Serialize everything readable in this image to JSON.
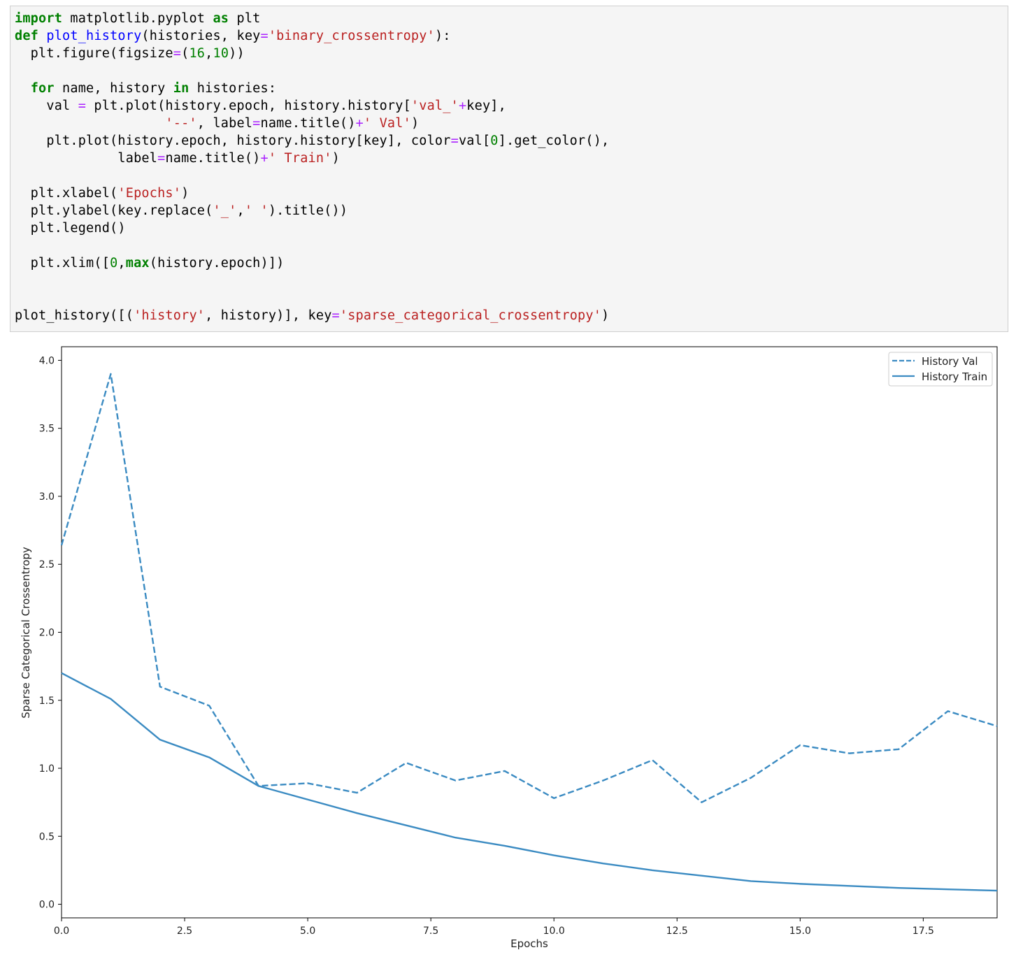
{
  "code": {
    "lines": [
      [
        {
          "t": "import",
          "c": "kw"
        },
        {
          "t": " matplotlib.pyplot "
        },
        {
          "t": "as",
          "c": "kw"
        },
        {
          "t": " plt"
        }
      ],
      [
        {
          "t": "def",
          "c": "kw"
        },
        {
          "t": " "
        },
        {
          "t": "plot_history",
          "c": "fn"
        },
        {
          "t": "(histories, key"
        },
        {
          "t": "=",
          "c": "op"
        },
        {
          "t": "'binary_crossentropy'",
          "c": "str"
        },
        {
          "t": "):"
        }
      ],
      [
        {
          "t": "  plt.figure(figsize"
        },
        {
          "t": "=",
          "c": "op"
        },
        {
          "t": "("
        },
        {
          "t": "16",
          "c": "num"
        },
        {
          "t": ","
        },
        {
          "t": "10",
          "c": "num"
        },
        {
          "t": "))"
        }
      ],
      [
        {
          "t": ""
        }
      ],
      [
        {
          "t": "  "
        },
        {
          "t": "for",
          "c": "kw"
        },
        {
          "t": " name, history "
        },
        {
          "t": "in",
          "c": "kw"
        },
        {
          "t": " histories:"
        }
      ],
      [
        {
          "t": "    val "
        },
        {
          "t": "=",
          "c": "op"
        },
        {
          "t": " plt.plot(history.epoch, history.history["
        },
        {
          "t": "'val_'",
          "c": "str"
        },
        {
          "t": "+",
          "c": "op"
        },
        {
          "t": "key],"
        }
      ],
      [
        {
          "t": "                   "
        },
        {
          "t": "'--'",
          "c": "str"
        },
        {
          "t": ", label"
        },
        {
          "t": "=",
          "c": "op"
        },
        {
          "t": "name.title()"
        },
        {
          "t": "+",
          "c": "op"
        },
        {
          "t": "' Val'",
          "c": "str"
        },
        {
          "t": ")"
        }
      ],
      [
        {
          "t": "    plt.plot(history.epoch, history.history[key], color"
        },
        {
          "t": "=",
          "c": "op"
        },
        {
          "t": "val["
        },
        {
          "t": "0",
          "c": "num"
        },
        {
          "t": "].get_color(),"
        }
      ],
      [
        {
          "t": "             label"
        },
        {
          "t": "=",
          "c": "op"
        },
        {
          "t": "name.title()"
        },
        {
          "t": "+",
          "c": "op"
        },
        {
          "t": "' Train'",
          "c": "str"
        },
        {
          "t": ")"
        }
      ],
      [
        {
          "t": ""
        }
      ],
      [
        {
          "t": "  plt.xlabel("
        },
        {
          "t": "'Epochs'",
          "c": "str"
        },
        {
          "t": ")"
        }
      ],
      [
        {
          "t": "  plt.ylabel(key.replace("
        },
        {
          "t": "'_'",
          "c": "str"
        },
        {
          "t": ","
        },
        {
          "t": "' '",
          "c": "str"
        },
        {
          "t": ").title())"
        }
      ],
      [
        {
          "t": "  plt.legend()"
        }
      ],
      [
        {
          "t": ""
        }
      ],
      [
        {
          "t": "  plt.xlim(["
        },
        {
          "t": "0",
          "c": "num"
        },
        {
          "t": ","
        },
        {
          "t": "max",
          "c": "kw"
        },
        {
          "t": "(history.epoch)])"
        }
      ],
      [
        {
          "t": ""
        }
      ],
      [
        {
          "t": ""
        }
      ],
      [
        {
          "t": "plot_history([("
        },
        {
          "t": "'history'",
          "c": "str"
        },
        {
          "t": ", history)], key"
        },
        {
          "t": "=",
          "c": "op"
        },
        {
          "t": "'sparse_categorical_crossentropy'",
          "c": "str"
        },
        {
          "t": ")"
        }
      ]
    ]
  },
  "chart_data": {
    "type": "line",
    "xlabel": "Epochs",
    "ylabel": "Sparse Categorical Crossentropy",
    "xlim": [
      0,
      19
    ],
    "ylim": [
      -0.1,
      4.1
    ],
    "xticks": [
      "0.0",
      "2.5",
      "5.0",
      "7.5",
      "10.0",
      "12.5",
      "15.0",
      "17.5"
    ],
    "yticks": [
      "0.0",
      "0.5",
      "1.0",
      "1.5",
      "2.0",
      "2.5",
      "3.0",
      "3.5",
      "4.0"
    ],
    "legend_position": "top-right",
    "grid": false,
    "color": "#3b8bc2",
    "x": [
      0,
      1,
      2,
      3,
      4,
      5,
      6,
      7,
      8,
      9,
      10,
      11,
      12,
      13,
      14,
      15,
      16,
      17,
      18,
      19
    ],
    "series": [
      {
        "name": "History Val",
        "style": "dashed",
        "values": [
          2.64,
          3.9,
          1.6,
          1.46,
          0.87,
          0.89,
          0.82,
          1.04,
          0.91,
          0.98,
          0.78,
          0.91,
          1.06,
          0.75,
          0.93,
          1.17,
          1.11,
          1.14,
          1.42,
          1.31
        ]
      },
      {
        "name": "History Train",
        "style": "solid",
        "values": [
          1.7,
          1.51,
          1.21,
          1.08,
          0.87,
          0.77,
          0.67,
          0.58,
          0.49,
          0.43,
          0.36,
          0.3,
          0.25,
          0.21,
          0.17,
          0.15,
          0.135,
          0.12,
          0.11,
          0.1
        ]
      }
    ]
  }
}
